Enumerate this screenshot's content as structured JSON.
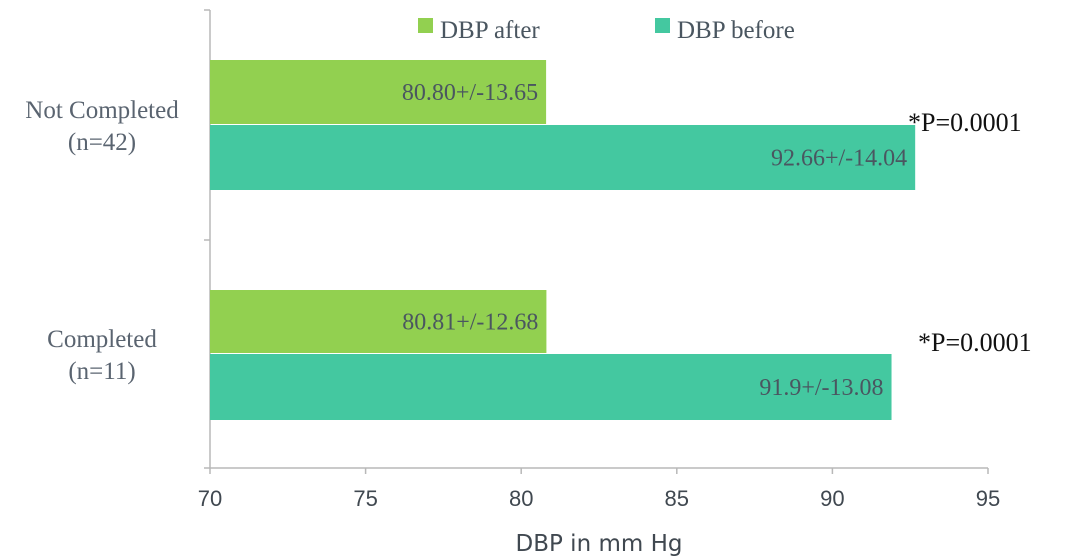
{
  "chart_data": {
    "type": "bar",
    "orientation": "horizontal",
    "xlabel": "DBP in mm Hg",
    "xlim": [
      70,
      95
    ],
    "xticks": [
      "70",
      "75",
      "80",
      "85",
      "90",
      "95"
    ],
    "categories": [
      {
        "line1": "Not Completed",
        "line2": "(n=42)"
      },
      {
        "line1": "Completed",
        "line2": "(n=11)"
      }
    ],
    "series": [
      {
        "name": "DBP after",
        "color": "#92d050",
        "values": [
          80.8,
          80.81
        ],
        "labels": [
          "80.80+/-13.65",
          "80.81+/-12.68"
        ]
      },
      {
        "name": "DBP before",
        "color": "#44c8a0",
        "values": [
          92.66,
          91.9
        ],
        "labels": [
          "92.66+/-14.04",
          "91.9+/-13.08"
        ]
      }
    ],
    "annotations": [
      "*P=0.0001",
      "*P=0.0001"
    ],
    "legend_position": "top",
    "grid": false
  }
}
